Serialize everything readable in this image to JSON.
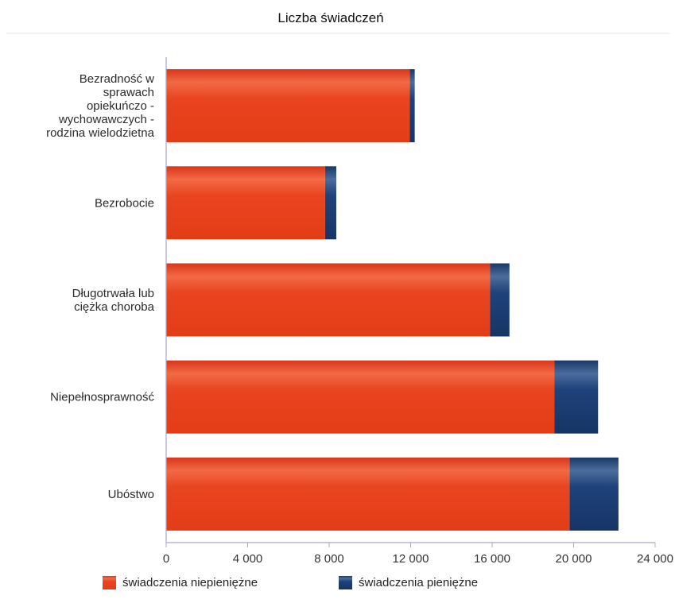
{
  "chart_data": {
    "type": "bar",
    "orientation": "horizontal",
    "stacked": true,
    "title": "Liczba świadczeń",
    "categories": [
      [
        "Bezradność w",
        "sprawach",
        "opiekuńczo -",
        "wychowawczych -",
        "rodzina wielodzietna"
      ],
      [
        "Bezrobocie"
      ],
      [
        "Długotrwała lub",
        "ciężka choroba"
      ],
      [
        "Niepełnosprawność"
      ],
      [
        "Ubóstwo"
      ]
    ],
    "series": [
      {
        "name": "świadczenia niepieniężne",
        "color": "#e8401a",
        "values": [
          11950,
          7800,
          15900,
          19050,
          19800
        ]
      },
      {
        "name": "świadczenia pieniężne",
        "color": "#1d3f74",
        "values": [
          250,
          550,
          950,
          2150,
          2400
        ]
      }
    ],
    "xlim": [
      0,
      24000
    ],
    "xticks": [
      "0",
      "4 000",
      "8 000",
      "12 000",
      "16 000",
      "20 000",
      "24 000"
    ],
    "xtick_values": [
      0,
      4000,
      8000,
      12000,
      16000,
      20000,
      24000
    ],
    "xlabel": "",
    "ylabel": "",
    "grid": false,
    "legend_position": "bottom-left"
  }
}
